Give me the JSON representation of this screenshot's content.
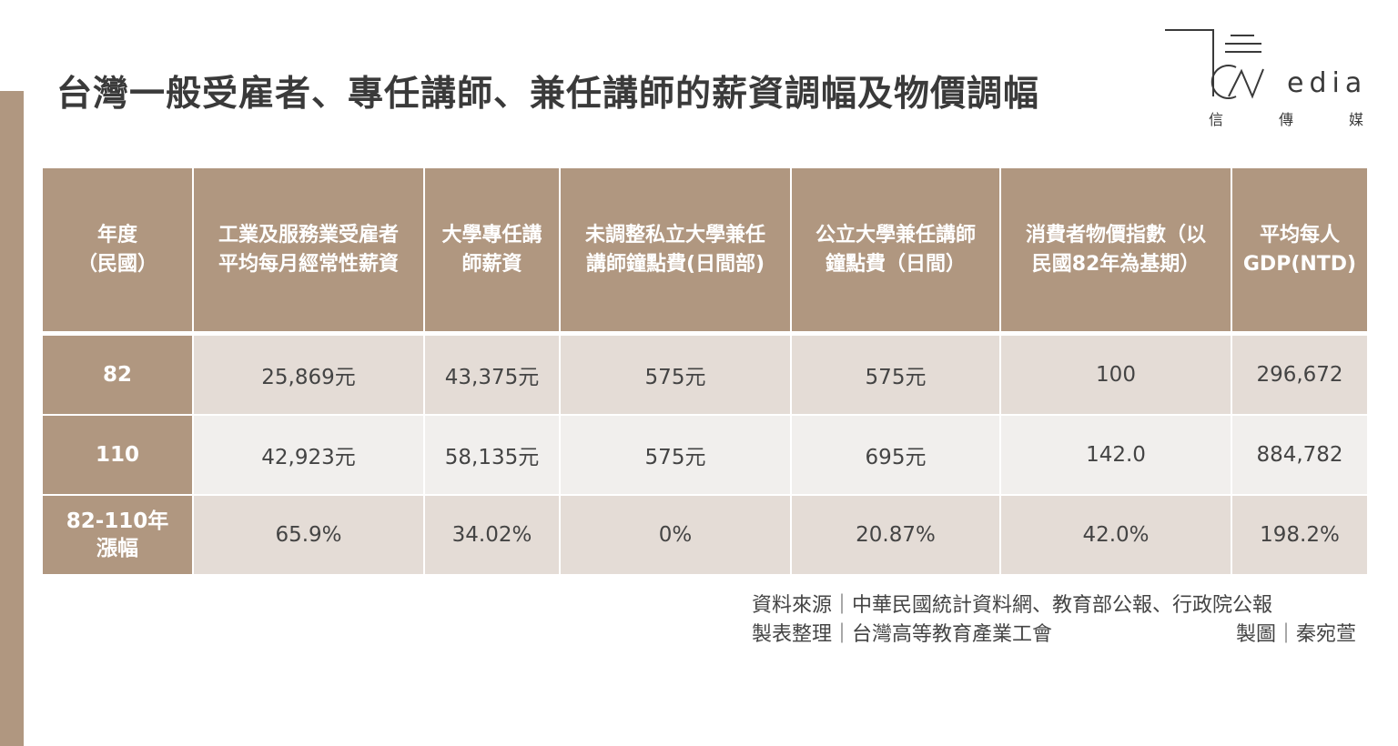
{
  "title": "台灣一般受雇者、專任講師、兼任講師的薪資調幅及物價調幅",
  "logo": {
    "text": "edia",
    "sub": [
      "信",
      "傳",
      "媒"
    ]
  },
  "chart_data": {
    "type": "table",
    "columns": [
      {
        "line1": "年度",
        "line2": "（民國）"
      },
      {
        "line1": "工業及服務業受雇者",
        "line2": "平均每月經常性薪資"
      },
      {
        "line1": "大學專任講",
        "line2": "師薪資"
      },
      {
        "line1": "未調整私立大學兼任",
        "line2": "講師鐘點費(日間部)"
      },
      {
        "line1": "公立大學兼任講師",
        "line2": "鐘點費（日間）"
      },
      {
        "line1": "消費者物價指數（以",
        "line2": "民國82年為基期）"
      },
      {
        "line1": "平均每人",
        "line2": "GDP(NTD)"
      }
    ],
    "rows": [
      {
        "label": "82",
        "label2": "",
        "values": [
          "25,869元",
          "43,375元",
          "575元",
          "575元",
          "100",
          "296,672"
        ]
      },
      {
        "label": "110",
        "label2": "",
        "values": [
          "42,923元",
          "58,135元",
          "575元",
          "695元",
          "142.0",
          "884,782"
        ]
      },
      {
        "label": "82-110年",
        "label2": "漲幅",
        "values": [
          "65.9%",
          "34.02%",
          "0%",
          "20.87%",
          "42.0%",
          "198.2%"
        ]
      }
    ]
  },
  "source": {
    "line1": "資料來源｜中華民國統計資料網、教育部公報、行政院公報",
    "line2_left": "製表整理｜台灣高等教育產業工會",
    "line2_right": "製圖｜秦宛萱"
  },
  "colors": {
    "accent": "#b09780",
    "row_dark": "#e4dcd6",
    "row_light": "#f1efed"
  }
}
